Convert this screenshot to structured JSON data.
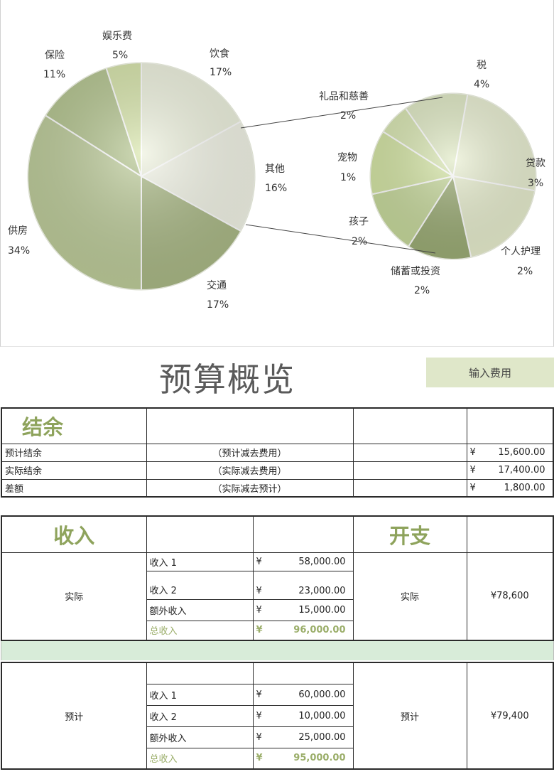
{
  "main_pie": {
    "slices": [
      {
        "label": "饮食",
        "pct": "17%",
        "value": 17,
        "color": "#eef2de"
      },
      {
        "label": "其他",
        "pct": "16%",
        "value": 16,
        "color": "#f2f4e6"
      },
      {
        "label": "交通",
        "pct": "17%",
        "value": 17,
        "color": "#a9b884"
      },
      {
        "label": "供房",
        "pct": "34%",
        "value": 34,
        "color": "#bccb98"
      },
      {
        "label": "保险",
        "pct": "11%",
        "value": 11,
        "color": "#b3c48d"
      },
      {
        "label": "娱乐费",
        "pct": "5%",
        "value": 5,
        "color": "#d6e4a8"
      }
    ]
  },
  "secondary_pie": {
    "slices": [
      {
        "label": "税",
        "pct": "4%",
        "value": 4,
        "color": "#e9efd1"
      },
      {
        "label": "贷款",
        "pct": "3%",
        "value": 3,
        "color": "#e7edcd"
      },
      {
        "label": "个人护理",
        "pct": "2%",
        "value": 2,
        "color": "#9aab73"
      },
      {
        "label": "储蓄或投资",
        "pct": "2%",
        "value": 2,
        "color": "#c6d89a"
      },
      {
        "label": "孩子",
        "pct": "2%",
        "value": 2,
        "color": "#d3e4a2"
      },
      {
        "label": "宠物",
        "pct": "1%",
        "value": 1,
        "color": "#d8e6b0"
      },
      {
        "label": "礼品和慈善",
        "pct": "2%",
        "value": 2,
        "color": "#dfe9c3"
      }
    ]
  },
  "header": {
    "title": "预算概览",
    "enter_expenses_label": "输入费用"
  },
  "balance": {
    "title": "结余",
    "rows": [
      {
        "label": "预计结余",
        "formula": "（预计减去费用）",
        "currency": "¥",
        "amount": "15,600.00"
      },
      {
        "label": "实际结余",
        "formula": "（实际减去费用）",
        "currency": "¥",
        "amount": "17,400.00"
      },
      {
        "label": "差额",
        "formula": "（实际减去预计）",
        "currency": "¥",
        "amount": "1,800.00"
      }
    ]
  },
  "income_section": {
    "income_title": "收入",
    "expense_title": "开支"
  },
  "actual": {
    "label": "实际",
    "items": [
      {
        "label": "收入 1",
        "currency": "¥",
        "amount": "58,000.00"
      },
      {
        "label": "收入 2",
        "currency": "¥",
        "amount": "23,000.00"
      },
      {
        "label": "额外收入",
        "currency": "¥",
        "amount": "15,000.00"
      }
    ],
    "total_label": "总收入",
    "total_currency": "¥",
    "total_amount": "96,000.00",
    "expense_label": "实际",
    "expense_amount": "¥78,600"
  },
  "planned": {
    "label": "预计",
    "items": [
      {
        "label": "收入 1",
        "currency": "¥",
        "amount": "60,000.00"
      },
      {
        "label": "收入 2",
        "currency": "¥",
        "amount": "10,000.00"
      },
      {
        "label": "额外收入",
        "currency": "¥",
        "amount": "25,000.00"
      }
    ],
    "total_label": "总收入",
    "total_currency": "¥",
    "total_amount": "95,000.00",
    "expense_label": "预计",
    "expense_amount": "¥79,400"
  }
}
